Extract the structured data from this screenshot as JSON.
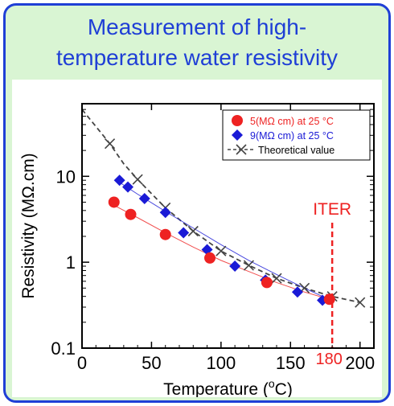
{
  "slide": {
    "title_line1": "Measurement of high-",
    "title_line2": "temperature water resistivity"
  },
  "colors": {
    "border": "#1f3fd6",
    "background": "#d9f5d3",
    "series_red": "#ee2222",
    "series_blue": "#1a1ad6",
    "theory": "#444444",
    "iter": "#ee2222"
  },
  "chart_data": {
    "type": "scatter",
    "xlabel_pre": "Temperature (",
    "xlabel_sup": "o",
    "xlabel_post": "C)",
    "ylabel": "Resistivity (MΩ.cm)",
    "xlim": [
      0,
      210
    ],
    "ylim": [
      0.1,
      70
    ],
    "yscale": "log",
    "xticks": [
      0,
      50,
      100,
      150,
      200
    ],
    "yticks": [
      0.1,
      1,
      10
    ],
    "ytick_labels": [
      "0.1",
      "1",
      "10"
    ],
    "legend_position": "top-right",
    "series": [
      {
        "name": "5(MΩ cm) at 25 °C",
        "marker": "circle",
        "color": "#ee2222",
        "x": [
          23,
          35,
          60,
          92,
          133,
          178
        ],
        "y": [
          5.0,
          3.6,
          2.1,
          1.12,
          0.58,
          0.37
        ],
        "fit_x": [
          23,
          40,
          60,
          80,
          100,
          120,
          140,
          160,
          178
        ],
        "fit_y": [
          4.6,
          3.3,
          2.2,
          1.5,
          1.05,
          0.78,
          0.58,
          0.45,
          0.37
        ]
      },
      {
        "name": "9(MΩ cm) at 25 °C",
        "marker": "diamond",
        "color": "#1a1ad6",
        "x": [
          27,
          33,
          45,
          60,
          73,
          90,
          110,
          132,
          155,
          173
        ],
        "y": [
          9.0,
          7.5,
          5.5,
          3.8,
          2.2,
          1.4,
          0.9,
          0.62,
          0.45,
          0.36
        ],
        "fit_x": [
          27,
          40,
          60,
          80,
          100,
          120,
          140,
          160,
          173
        ],
        "fit_y": [
          8.5,
          6.2,
          3.9,
          2.5,
          1.6,
          1.05,
          0.72,
          0.5,
          0.4
        ]
      },
      {
        "name": "Theoretical value",
        "marker": "x",
        "color": "#444444",
        "x": [
          20,
          40,
          60,
          80,
          100,
          120,
          140,
          160,
          180,
          200
        ],
        "y": [
          24,
          9.2,
          4.3,
          2.3,
          1.35,
          0.92,
          0.65,
          0.5,
          0.4,
          0.34
        ],
        "line_x": [
          0,
          10,
          20,
          30,
          40,
          60,
          80,
          100,
          120,
          140,
          160,
          180,
          200
        ],
        "line_y": [
          60,
          38,
          24,
          14,
          9.2,
          4.3,
          2.3,
          1.35,
          0.92,
          0.65,
          0.5,
          0.4,
          0.34
        ]
      }
    ],
    "annotation": {
      "label": "ITER",
      "x": 180,
      "tick_label": "180",
      "color": "#ee2222"
    }
  }
}
